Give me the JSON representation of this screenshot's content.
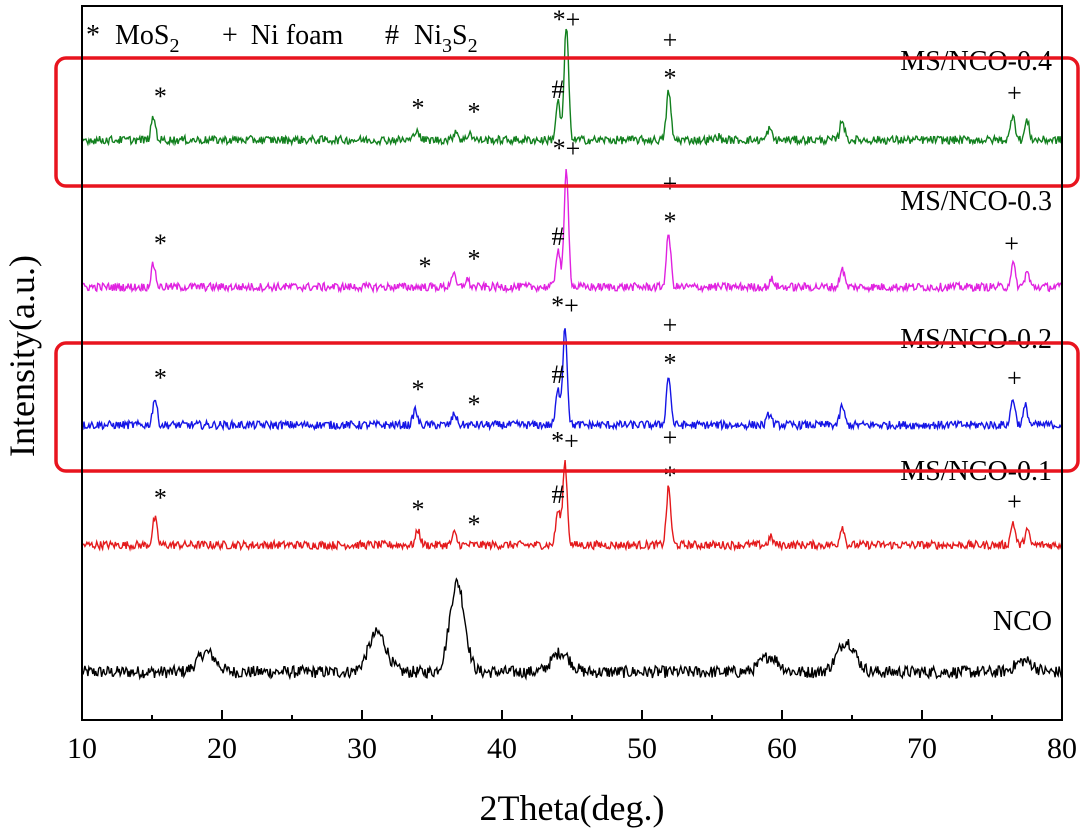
{
  "chart_data": {
    "type": "line",
    "title": "",
    "xlabel": "2Theta(deg.)",
    "ylabel": "Intensity(a.u.)",
    "xlim": [
      10,
      80
    ],
    "x_ticks": [
      "10",
      "20",
      "30",
      "40",
      "50",
      "60",
      "70",
      "80"
    ],
    "y_ticks_shown": false,
    "legend": [
      {
        "symbol": "*",
        "label": "MoS",
        "sub": "2"
      },
      {
        "symbol": "+",
        "label": "Ni foam",
        "sub": ""
      },
      {
        "symbol": "#",
        "label": "Ni",
        "sub": "3",
        "label2": "S",
        "sub2": "2"
      }
    ],
    "series": [
      {
        "name": "NCO",
        "color": "#000000",
        "offset": 0,
        "peaks": [
          [
            18.9,
            0.35
          ],
          [
            31.1,
            0.7
          ],
          [
            36.8,
            1.6
          ],
          [
            44.2,
            0.35
          ],
          [
            59.1,
            0.28
          ],
          [
            64.6,
            0.55
          ],
          [
            77.3,
            0.2
          ]
        ],
        "markers": []
      },
      {
        "name": "MS/NCO-0.1",
        "color": "#e41a1c",
        "offset": 1,
        "peaks": [
          [
            15.2,
            0.7
          ],
          [
            34.0,
            0.4
          ],
          [
            36.6,
            0.3
          ],
          [
            44.0,
            0.9
          ],
          [
            44.5,
            2.2
          ],
          [
            51.9,
            1.5
          ],
          [
            59.2,
            0.2
          ],
          [
            64.3,
            0.5
          ],
          [
            76.5,
            0.6
          ],
          [
            77.5,
            0.4
          ]
        ],
        "markers": [
          [
            15.6,
            "*"
          ],
          [
            34.0,
            "*"
          ],
          [
            38.0,
            "*"
          ],
          [
            44.0,
            "#"
          ],
          [
            44.5,
            "*+"
          ],
          [
            52.0,
            "+ *"
          ],
          [
            76.6,
            "+"
          ]
        ]
      },
      {
        "name": "MS/NCO-0.2",
        "color": "#1515e6",
        "offset": 2,
        "peaks": [
          [
            15.2,
            0.7
          ],
          [
            33.8,
            0.4
          ],
          [
            36.6,
            0.3
          ],
          [
            44.0,
            0.9
          ],
          [
            44.5,
            2.6
          ],
          [
            51.9,
            1.3
          ],
          [
            59.1,
            0.3
          ],
          [
            64.3,
            0.5
          ],
          [
            76.5,
            0.7
          ],
          [
            77.4,
            0.5
          ]
        ],
        "markers": [
          [
            15.6,
            "*"
          ],
          [
            34.0,
            "*"
          ],
          [
            38.0,
            "*"
          ],
          [
            44.0,
            "#"
          ],
          [
            44.5,
            "*+"
          ],
          [
            52.0,
            "+ *"
          ],
          [
            76.6,
            "+"
          ]
        ]
      },
      {
        "name": "MS/NCO-0.3",
        "color": "#e022e0",
        "offset": 3,
        "peaks": [
          [
            15.1,
            0.6
          ],
          [
            36.5,
            0.35
          ],
          [
            37.5,
            0.2
          ],
          [
            44.0,
            1.0
          ],
          [
            44.6,
            3.1
          ],
          [
            51.9,
            1.4
          ],
          [
            59.3,
            0.2
          ],
          [
            64.3,
            0.5
          ],
          [
            76.5,
            0.6
          ],
          [
            77.5,
            0.4
          ]
        ],
        "markers": [
          [
            15.6,
            "*"
          ],
          [
            34.5,
            "*"
          ],
          [
            38.0,
            "*"
          ],
          [
            44.0,
            "#"
          ],
          [
            44.6,
            "*+"
          ],
          [
            52.0,
            "+ *"
          ],
          [
            76.4,
            "+"
          ]
        ]
      },
      {
        "name": "MS/NCO-0.4",
        "color": "#12801e",
        "offset": 4,
        "peaks": [
          [
            15.1,
            0.6
          ],
          [
            33.9,
            0.3
          ],
          [
            36.7,
            0.25
          ],
          [
            37.7,
            0.2
          ],
          [
            44.0,
            1.0
          ],
          [
            44.6,
            3.0
          ],
          [
            51.9,
            1.3
          ],
          [
            55.4,
            0.1
          ],
          [
            59.1,
            0.3
          ],
          [
            64.3,
            0.55
          ],
          [
            76.5,
            0.7
          ],
          [
            77.5,
            0.5
          ]
        ],
        "markers": [
          [
            15.6,
            "*"
          ],
          [
            34.0,
            "*"
          ],
          [
            38.0,
            "*"
          ],
          [
            44.0,
            "#"
          ],
          [
            44.6,
            "*+"
          ],
          [
            52.0,
            "+ *"
          ],
          [
            76.6,
            "+"
          ]
        ]
      }
    ],
    "highlighted_series": [
      "MS/NCO-0.4",
      "MS/NCO-0.2"
    ],
    "highlight_color": "#e8141e"
  }
}
